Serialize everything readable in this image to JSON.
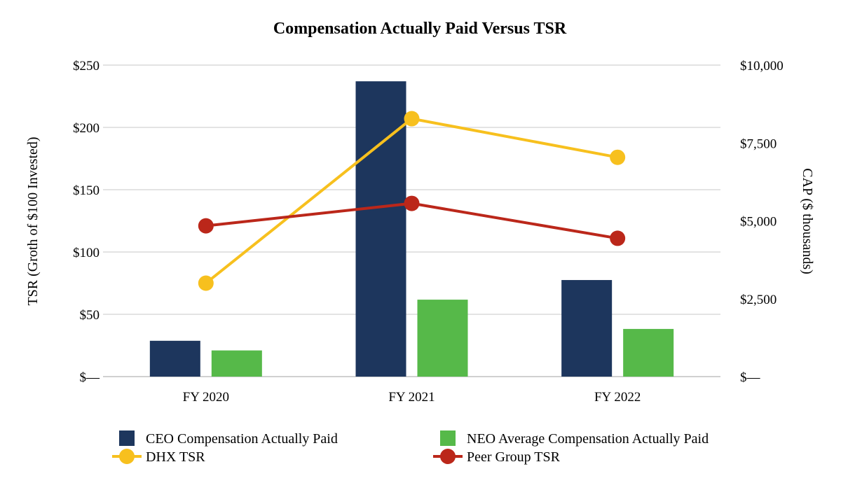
{
  "chart_data": {
    "type": "bar",
    "title": "Compensation Actually Paid Versus TSR",
    "categories": [
      "FY 2020",
      "FY 2021",
      "FY 2022"
    ],
    "y_left": {
      "label": "TSR (Groth of $100 Invested)",
      "min": 0,
      "max": 250,
      "ticks": [
        0,
        50,
        100,
        150,
        200,
        250
      ],
      "tick_labels": [
        "$—",
        "$50",
        "$100",
        "$150",
        "$200",
        "$250"
      ]
    },
    "y_right": {
      "label": "CAP ($ thousands)",
      "min": 0,
      "max": 10000,
      "ticks": [
        0,
        2500,
        5000,
        7500,
        10000
      ],
      "tick_labels": [
        "$—",
        "$2,500",
        "$5,000",
        "$7,500",
        "$10,000"
      ]
    },
    "bar_series": [
      {
        "name": "CEO Compensation Actually Paid",
        "axis": "right",
        "color": "#1d365d",
        "values": [
          1150,
          9480,
          3100
        ]
      },
      {
        "name": "NEO Average Compensation Actually Paid",
        "axis": "right",
        "color": "#56b949",
        "values": [
          840,
          2470,
          1530
        ]
      }
    ],
    "line_series": [
      {
        "name": "DHX TSR",
        "axis": "left",
        "color": "#f7c01e",
        "values": [
          75,
          207,
          176
        ]
      },
      {
        "name": "Peer Group TSR",
        "axis": "left",
        "color": "#bb271a",
        "values": [
          121,
          139,
          111
        ]
      }
    ],
    "gridlines": true,
    "legend_position": "bottom"
  }
}
